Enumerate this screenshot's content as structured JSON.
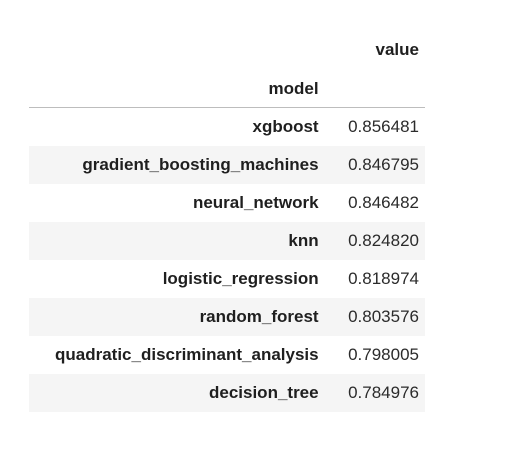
{
  "table": {
    "columns": [
      "value"
    ],
    "index_name": "model",
    "rows": [
      {
        "model": "xgboost",
        "value": "0.856481"
      },
      {
        "model": "gradient_boosting_machines",
        "value": "0.846795"
      },
      {
        "model": "neural_network",
        "value": "0.846482"
      },
      {
        "model": "knn",
        "value": "0.824820"
      },
      {
        "model": "logistic_regression",
        "value": "0.818974"
      },
      {
        "model": "random_forest",
        "value": "0.803576"
      },
      {
        "model": "quadratic_discriminant_analysis",
        "value": "0.798005"
      },
      {
        "model": "decision_tree",
        "value": "0.784976"
      }
    ]
  }
}
